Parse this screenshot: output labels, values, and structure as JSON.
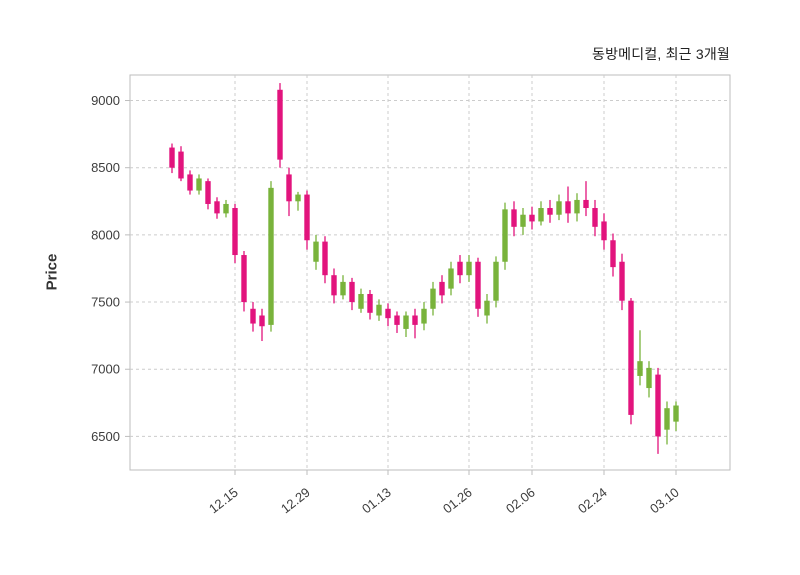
{
  "chart_data": {
    "type": "candlestick",
    "title": "동방메디컬, 최근 3개월",
    "ylabel": "Price",
    "xlabel": "",
    "legend": "none",
    "grid": "dashed",
    "ylim": [
      6250,
      9190
    ],
    "y_ticks": [
      6500,
      7000,
      7500,
      8000,
      8500,
      9000
    ],
    "x_tick_labels": [
      "12.15",
      "12.29",
      "01.13",
      "01.26",
      "02.06",
      "02.24",
      "03.10"
    ],
    "x_tick_indices": [
      7,
      15,
      24,
      33,
      40,
      48,
      56
    ],
    "colors": {
      "up_candle": "#79b33b",
      "down_candle": "#e2147d",
      "grid_line": "#cccccc",
      "frame": "#bdbdbd",
      "tick_text": "#3d3d3d",
      "title_text": "#222222",
      "background": "#ffffff"
    },
    "ohlc_format": [
      "open",
      "high",
      "low",
      "close"
    ],
    "candles": [
      [
        8650,
        8680,
        8460,
        8500
      ],
      [
        8620,
        8660,
        8400,
        8420
      ],
      [
        8450,
        8480,
        8300,
        8330
      ],
      [
        8330,
        8450,
        8300,
        8420
      ],
      [
        8400,
        8420,
        8190,
        8230
      ],
      [
        8250,
        8280,
        8120,
        8160
      ],
      [
        8160,
        8260,
        8130,
        8230
      ],
      [
        8200,
        8230,
        7790,
        7850
      ],
      [
        7850,
        7880,
        7430,
        7500
      ],
      [
        7450,
        7500,
        7280,
        7340
      ],
      [
        7400,
        7450,
        7210,
        7320
      ],
      [
        7330,
        8400,
        7280,
        8350
      ],
      [
        9080,
        9130,
        8500,
        8560
      ],
      [
        8450,
        8500,
        8140,
        8250
      ],
      [
        8250,
        8320,
        8180,
        8300
      ],
      [
        8300,
        8330,
        7890,
        7960
      ],
      [
        7800,
        8000,
        7740,
        7950
      ],
      [
        7950,
        7990,
        7640,
        7700
      ],
      [
        7700,
        7750,
        7490,
        7550
      ],
      [
        7550,
        7700,
        7520,
        7650
      ],
      [
        7650,
        7680,
        7440,
        7500
      ],
      [
        7450,
        7600,
        7420,
        7560
      ],
      [
        7560,
        7590,
        7370,
        7420
      ],
      [
        7400,
        7520,
        7360,
        7480
      ],
      [
        7450,
        7490,
        7320,
        7380
      ],
      [
        7400,
        7430,
        7270,
        7330
      ],
      [
        7300,
        7430,
        7240,
        7400
      ],
      [
        7400,
        7450,
        7230,
        7330
      ],
      [
        7340,
        7500,
        7290,
        7450
      ],
      [
        7450,
        7650,
        7400,
        7600
      ],
      [
        7650,
        7700,
        7490,
        7550
      ],
      [
        7600,
        7800,
        7550,
        7750
      ],
      [
        7800,
        7850,
        7640,
        7700
      ],
      [
        7700,
        7850,
        7650,
        7800
      ],
      [
        7800,
        7830,
        7390,
        7450
      ],
      [
        7400,
        7560,
        7340,
        7510
      ],
      [
        7510,
        7840,
        7460,
        7800
      ],
      [
        7800,
        8240,
        7740,
        8190
      ],
      [
        8190,
        8250,
        7990,
        8060
      ],
      [
        8060,
        8200,
        8000,
        8150
      ],
      [
        8150,
        8210,
        8040,
        8100
      ],
      [
        8100,
        8250,
        8070,
        8200
      ],
      [
        8200,
        8260,
        8090,
        8150
      ],
      [
        8150,
        8300,
        8110,
        8250
      ],
      [
        8250,
        8360,
        8090,
        8160
      ],
      [
        8160,
        8310,
        8100,
        8260
      ],
      [
        8260,
        8400,
        8140,
        8200
      ],
      [
        8200,
        8260,
        7990,
        8060
      ],
      [
        8100,
        8160,
        7890,
        7960
      ],
      [
        7960,
        8010,
        7690,
        7760
      ],
      [
        7800,
        7860,
        7440,
        7510
      ],
      [
        7510,
        7530,
        6590,
        6660
      ],
      [
        6950,
        7290,
        6880,
        7060
      ],
      [
        6860,
        7060,
        6790,
        7010
      ],
      [
        6960,
        7010,
        6370,
        6500
      ],
      [
        6550,
        6760,
        6440,
        6710
      ],
      [
        6610,
        6760,
        6540,
        6730
      ]
    ]
  }
}
